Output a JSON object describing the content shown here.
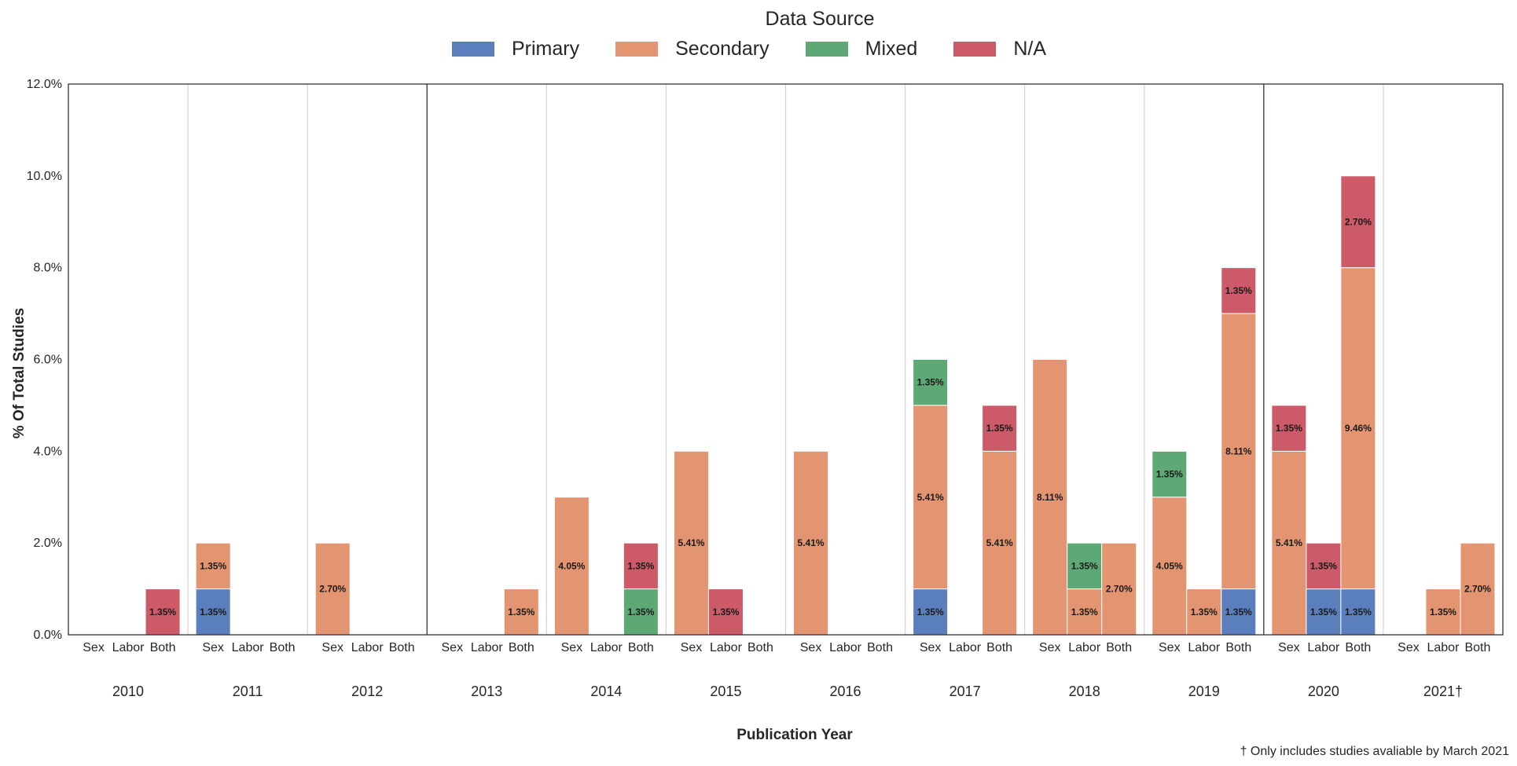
{
  "chart_data": {
    "type": "bar",
    "stacked": true,
    "legend_title": "Data Source",
    "legend": [
      "Primary",
      "Secondary",
      "Mixed",
      "N/A"
    ],
    "colors": {
      "Primary": "#5b7fbd",
      "Secondary": "#e39470",
      "Mixed": "#5ea876",
      "N/A": "#cc5a68"
    },
    "xlabel": "Publication Year",
    "ylabel": "% Of Total Studies",
    "ylim": [
      0,
      12
    ],
    "yticks": [
      "0.0%",
      "2.0%",
      "4.0%",
      "6.0%",
      "8.0%",
      "10.0%",
      "12.0%"
    ],
    "subcategories": [
      "Sex",
      "Labor",
      "Both"
    ],
    "footnote": "† Only includes studies avaliable by March 2021",
    "years": [
      {
        "year": "2010",
        "bars": [
          [],
          [],
          [
            {
              "s": "N/A",
              "v": 1.0,
              "label": "1.35%"
            }
          ]
        ]
      },
      {
        "year": "2011",
        "bars": [
          [
            {
              "s": "Primary",
              "v": 1.0,
              "label": "1.35%"
            },
            {
              "s": "Secondary",
              "v": 1.0,
              "label": "1.35%"
            }
          ],
          [],
          []
        ]
      },
      {
        "year": "2012",
        "bars": [
          [
            {
              "s": "Secondary",
              "v": 2.0,
              "label": "2.70%"
            }
          ],
          [],
          []
        ]
      },
      {
        "year": "2013",
        "bars": [
          [],
          [],
          [
            {
              "s": "Secondary",
              "v": 1.0,
              "label": "1.35%"
            }
          ]
        ]
      },
      {
        "year": "2014",
        "bars": [
          [
            {
              "s": "Secondary",
              "v": 3.0,
              "label": "4.05%"
            }
          ],
          [],
          [
            {
              "s": "Mixed",
              "v": 1.0,
              "label": "1.35%"
            },
            {
              "s": "N/A",
              "v": 1.0,
              "label": "1.35%"
            }
          ]
        ]
      },
      {
        "year": "2015",
        "bars": [
          [
            {
              "s": "Secondary",
              "v": 4.0,
              "label": "5.41%"
            }
          ],
          [
            {
              "s": "N/A",
              "v": 1.0,
              "label": "1.35%"
            }
          ],
          []
        ]
      },
      {
        "year": "2016",
        "bars": [
          [
            {
              "s": "Secondary",
              "v": 4.0,
              "label": "5.41%"
            }
          ],
          [],
          []
        ]
      },
      {
        "year": "2017",
        "bars": [
          [
            {
              "s": "Primary",
              "v": 1.0,
              "label": "1.35%"
            },
            {
              "s": "Secondary",
              "v": 4.0,
              "label": "5.41%"
            },
            {
              "s": "Mixed",
              "v": 1.0,
              "label": "1.35%"
            }
          ],
          [],
          [
            {
              "s": "Secondary",
              "v": 4.0,
              "label": "5.41%"
            },
            {
              "s": "N/A",
              "v": 1.0,
              "label": "1.35%"
            }
          ]
        ]
      },
      {
        "year": "2018",
        "bars": [
          [
            {
              "s": "Secondary",
              "v": 6.0,
              "label": "8.11%"
            }
          ],
          [
            {
              "s": "Secondary",
              "v": 1.0,
              "label": "1.35%"
            },
            {
              "s": "Mixed",
              "v": 1.0,
              "label": "1.35%"
            }
          ],
          [
            {
              "s": "Secondary",
              "v": 2.0,
              "label": "2.70%"
            }
          ]
        ]
      },
      {
        "year": "2019",
        "bars": [
          [
            {
              "s": "Secondary",
              "v": 3.0,
              "label": "4.05%"
            },
            {
              "s": "Mixed",
              "v": 1.0,
              "label": "1.35%"
            }
          ],
          [
            {
              "s": "Secondary",
              "v": 1.0,
              "label": "1.35%"
            }
          ],
          [
            {
              "s": "Primary",
              "v": 1.0,
              "label": "1.35%"
            },
            {
              "s": "Secondary",
              "v": 6.0,
              "label": "8.11%"
            },
            {
              "s": "N/A",
              "v": 1.0,
              "label": "1.35%"
            }
          ]
        ]
      },
      {
        "year": "2020",
        "bars": [
          [
            {
              "s": "Secondary",
              "v": 4.0,
              "label": "5.41%"
            },
            {
              "s": "N/A",
              "v": 1.0,
              "label": "1.35%"
            }
          ],
          [
            {
              "s": "Primary",
              "v": 1.0,
              "label": "1.35%"
            },
            {
              "s": "N/A",
              "v": 1.0,
              "label": "1.35%"
            }
          ],
          [
            {
              "s": "Primary",
              "v": 1.0,
              "label": "1.35%"
            },
            {
              "s": "Secondary",
              "v": 7.0,
              "label": "9.46%"
            },
            {
              "s": "N/A",
              "v": 2.0,
              "label": "2.70%"
            }
          ]
        ]
      },
      {
        "year": "2021†",
        "bars": [
          [],
          [
            {
              "s": "Secondary",
              "v": 1.0,
              "label": "1.35%"
            }
          ],
          [
            {
              "s": "Secondary",
              "v": 2.0,
              "label": "2.70%"
            }
          ]
        ]
      }
    ]
  }
}
